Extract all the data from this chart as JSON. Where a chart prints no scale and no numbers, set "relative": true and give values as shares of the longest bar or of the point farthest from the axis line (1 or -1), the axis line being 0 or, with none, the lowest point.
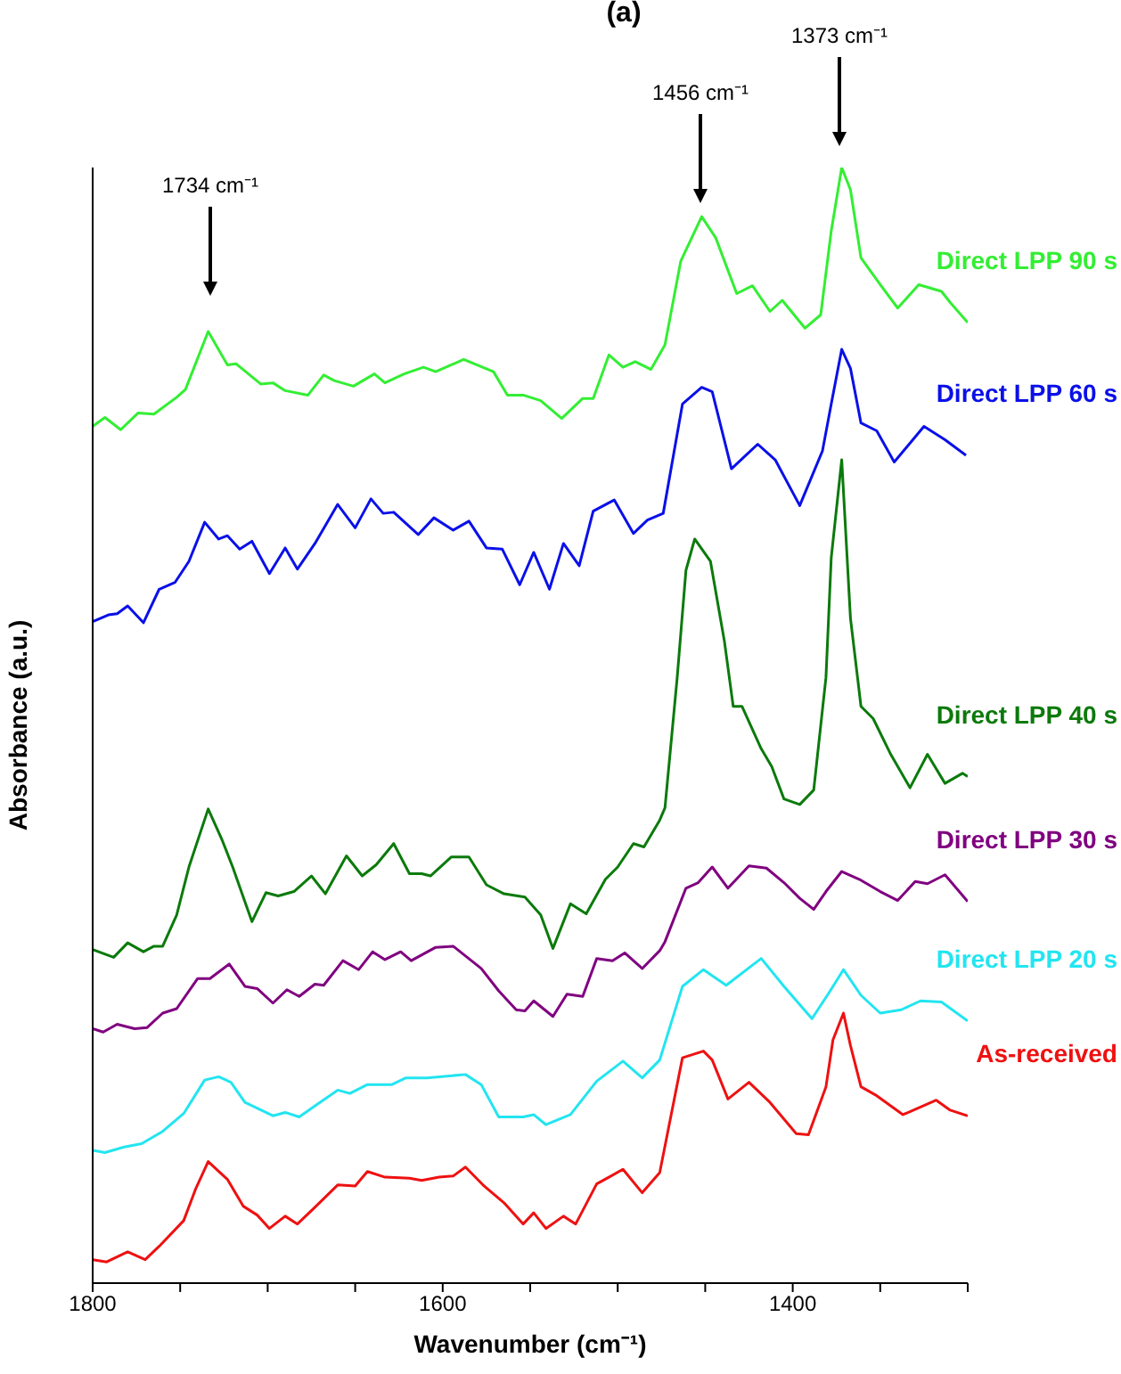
{
  "chart_data": {
    "type": "line",
    "title": "(a)",
    "xlabel": "Wavenumber (cm⁻¹)",
    "ylabel": "Absorbance (a.u.)",
    "relative": true,
    "grid": false,
    "legend": false,
    "marker": "none",
    "line_style": "solid",
    "xlim": [
      1800,
      1300
    ],
    "xticks": [
      1800,
      {
        "value": 1750,
        "label": null
      },
      {
        "value": 1700,
        "label": null
      },
      {
        "value": 1650,
        "label": null
      },
      1600,
      {
        "value": 1550,
        "label": null
      },
      {
        "value": 1500,
        "label": null
      },
      {
        "value": 1450,
        "label": null
      },
      1400,
      {
        "value": 1350,
        "label": null
      },
      {
        "value": 1300,
        "label": null
      }
    ],
    "annotations": [
      "1734 cm⁻¹",
      "1456 cm⁻¹",
      "1373 cm⁻¹"
    ],
    "series": [
      {
        "name": "Direct LPP 90 s",
        "color": "#33ee33",
        "x": [
          1800,
          1793,
          1784,
          1774,
          1765,
          1752,
          1747,
          1734,
          1723,
          1718,
          1704,
          1697,
          1690,
          1677,
          1668,
          1662,
          1651,
          1639,
          1633,
          1622,
          1611,
          1604,
          1588,
          1571,
          1563,
          1554,
          1544,
          1532,
          1520,
          1514,
          1505,
          1497,
          1490,
          1481,
          1473,
          1464,
          1452,
          1444,
          1432,
          1423,
          1413,
          1406,
          1393,
          1384,
          1378,
          1372,
          1367,
          1361,
          1350,
          1340,
          1328,
          1315,
          1310,
          1300
        ],
        "values": [
          0.768,
          0.776,
          0.765,
          0.78,
          0.779,
          0.794,
          0.801,
          0.853,
          0.823,
          0.824,
          0.806,
          0.807,
          0.8,
          0.796,
          0.814,
          0.809,
          0.804,
          0.815,
          0.807,
          0.815,
          0.821,
          0.817,
          0.828,
          0.817,
          0.796,
          0.796,
          0.791,
          0.775,
          0.793,
          0.793,
          0.832,
          0.821,
          0.826,
          0.819,
          0.841,
          0.916,
          0.956,
          0.937,
          0.887,
          0.894,
          0.871,
          0.881,
          0.856,
          0.868,
          0.943,
          1.0,
          0.98,
          0.919,
          0.895,
          0.874,
          0.895,
          0.889,
          0.879,
          0.861
        ]
      },
      {
        "name": "Direct LPP 60 s",
        "color": "#0a10e8",
        "x": [
          1800,
          1791,
          1786,
          1780,
          1771,
          1762,
          1753,
          1745,
          1736,
          1728,
          1723,
          1716,
          1709,
          1699,
          1690,
          1683,
          1673,
          1660,
          1650,
          1641,
          1634,
          1628,
          1614,
          1605,
          1594,
          1585,
          1575,
          1566,
          1556,
          1548,
          1539,
          1531,
          1522,
          1514,
          1502,
          1491,
          1483,
          1474,
          1463,
          1452,
          1446,
          1435,
          1420,
          1410,
          1396,
          1383,
          1378,
          1372,
          1367,
          1361,
          1352,
          1342,
          1325,
          1313,
          1301
        ],
        "values": [
          0.593,
          0.599,
          0.6,
          0.607,
          0.592,
          0.622,
          0.628,
          0.647,
          0.682,
          0.667,
          0.67,
          0.658,
          0.665,
          0.636,
          0.659,
          0.64,
          0.663,
          0.698,
          0.677,
          0.703,
          0.69,
          0.691,
          0.671,
          0.686,
          0.675,
          0.683,
          0.659,
          0.658,
          0.626,
          0.655,
          0.622,
          0.663,
          0.643,
          0.692,
          0.702,
          0.672,
          0.684,
          0.69,
          0.788,
          0.803,
          0.799,
          0.73,
          0.752,
          0.738,
          0.697,
          0.746,
          0.788,
          0.837,
          0.82,
          0.771,
          0.764,
          0.736,
          0.768,
          0.756,
          0.742
        ]
      },
      {
        "name": "Direct LPP 40 s",
        "color": "#0b7a0b",
        "x": [
          1800,
          1788,
          1780,
          1771,
          1765,
          1760,
          1752,
          1745,
          1734,
          1726,
          1720,
          1709,
          1701,
          1694,
          1685,
          1675,
          1667,
          1655,
          1646,
          1638,
          1628,
          1619,
          1612,
          1607,
          1595,
          1585,
          1575,
          1565,
          1553,
          1544,
          1537,
          1527,
          1518,
          1507,
          1500,
          1491,
          1485,
          1476,
          1473,
          1466,
          1461,
          1456,
          1447,
          1439,
          1434,
          1429,
          1418,
          1412,
          1405,
          1396,
          1388,
          1381,
          1378,
          1372,
          1367,
          1361,
          1354,
          1344,
          1333,
          1323,
          1313,
          1303,
          1300
        ],
        "values": [
          0.299,
          0.292,
          0.305,
          0.297,
          0.302,
          0.302,
          0.33,
          0.373,
          0.425,
          0.397,
          0.373,
          0.324,
          0.35,
          0.347,
          0.351,
          0.365,
          0.349,
          0.383,
          0.365,
          0.375,
          0.394,
          0.367,
          0.367,
          0.365,
          0.382,
          0.382,
          0.357,
          0.349,
          0.346,
          0.33,
          0.3,
          0.34,
          0.331,
          0.362,
          0.373,
          0.394,
          0.391,
          0.415,
          0.426,
          0.543,
          0.639,
          0.667,
          0.647,
          0.575,
          0.517,
          0.517,
          0.479,
          0.463,
          0.434,
          0.429,
          0.442,
          0.543,
          0.65,
          0.738,
          0.596,
          0.517,
          0.506,
          0.474,
          0.444,
          0.474,
          0.448,
          0.457,
          0.454
        ]
      },
      {
        "name": "Direct LPP 30 s",
        "color": "#800080",
        "x": [
          1800,
          1794,
          1786,
          1776,
          1769,
          1760,
          1752,
          1740,
          1733,
          1722,
          1713,
          1706,
          1697,
          1689,
          1682,
          1673,
          1668,
          1657,
          1648,
          1640,
          1633,
          1624,
          1618,
          1604,
          1594,
          1578,
          1568,
          1558,
          1553,
          1548,
          1537,
          1529,
          1520,
          1512,
          1503,
          1496,
          1486,
          1476,
          1473,
          1461,
          1454,
          1446,
          1437,
          1425,
          1415,
          1405,
          1396,
          1388,
          1381,
          1372,
          1362,
          1350,
          1340,
          1330,
          1323,
          1313,
          1300
        ],
        "values": [
          0.228,
          0.225,
          0.232,
          0.228,
          0.229,
          0.242,
          0.246,
          0.273,
          0.273,
          0.286,
          0.266,
          0.264,
          0.251,
          0.263,
          0.257,
          0.268,
          0.267,
          0.289,
          0.281,
          0.297,
          0.29,
          0.297,
          0.289,
          0.301,
          0.302,
          0.282,
          0.262,
          0.245,
          0.244,
          0.253,
          0.239,
          0.259,
          0.257,
          0.291,
          0.289,
          0.296,
          0.282,
          0.298,
          0.306,
          0.354,
          0.359,
          0.373,
          0.354,
          0.374,
          0.372,
          0.359,
          0.345,
          0.335,
          0.351,
          0.369,
          0.362,
          0.351,
          0.343,
          0.36,
          0.358,
          0.366,
          0.342
        ]
      },
      {
        "name": "Direct LPP 20 s",
        "color": "#22e5f0",
        "x": [
          1800,
          1793,
          1782,
          1772,
          1760,
          1748,
          1736,
          1728,
          1721,
          1713,
          1697,
          1690,
          1682,
          1672,
          1660,
          1653,
          1643,
          1629,
          1621,
          1609,
          1587,
          1578,
          1568,
          1554,
          1548,
          1541,
          1527,
          1512,
          1497,
          1486,
          1476,
          1463,
          1451,
          1438,
          1418,
          1405,
          1389,
          1379,
          1371,
          1361,
          1350,
          1338,
          1327,
          1315,
          1300
        ],
        "values": [
          0.119,
          0.117,
          0.122,
          0.125,
          0.136,
          0.152,
          0.182,
          0.185,
          0.18,
          0.162,
          0.15,
          0.153,
          0.149,
          0.16,
          0.173,
          0.17,
          0.178,
          0.178,
          0.184,
          0.184,
          0.187,
          0.178,
          0.149,
          0.149,
          0.151,
          0.142,
          0.151,
          0.181,
          0.199,
          0.184,
          0.2,
          0.266,
          0.281,
          0.267,
          0.291,
          0.266,
          0.237,
          0.261,
          0.281,
          0.258,
          0.242,
          0.245,
          0.253,
          0.252,
          0.235
        ]
      },
      {
        "name": "As-received",
        "color": "#ee1111",
        "x": [
          1800,
          1792,
          1780,
          1770,
          1762,
          1748,
          1741,
          1734,
          1723,
          1714,
          1706,
          1699,
          1690,
          1683,
          1673,
          1660,
          1650,
          1643,
          1633,
          1619,
          1612,
          1602,
          1594,
          1587,
          1577,
          1565,
          1554,
          1548,
          1541,
          1531,
          1524,
          1512,
          1505,
          1497,
          1486,
          1476,
          1463,
          1451,
          1446,
          1437,
          1425,
          1413,
          1398,
          1391,
          1381,
          1377,
          1371,
          1367,
          1361,
          1352,
          1337,
          1318,
          1310,
          1300
        ],
        "values": [
          0.021,
          0.019,
          0.028,
          0.021,
          0.033,
          0.056,
          0.085,
          0.109,
          0.093,
          0.069,
          0.061,
          0.049,
          0.06,
          0.053,
          0.068,
          0.088,
          0.087,
          0.1,
          0.095,
          0.094,
          0.092,
          0.095,
          0.096,
          0.104,
          0.088,
          0.072,
          0.053,
          0.063,
          0.049,
          0.06,
          0.053,
          0.089,
          0.095,
          0.102,
          0.081,
          0.099,
          0.202,
          0.208,
          0.2,
          0.165,
          0.18,
          0.162,
          0.134,
          0.133,
          0.176,
          0.218,
          0.242,
          0.213,
          0.176,
          0.168,
          0.151,
          0.164,
          0.155,
          0.15
        ]
      }
    ]
  }
}
